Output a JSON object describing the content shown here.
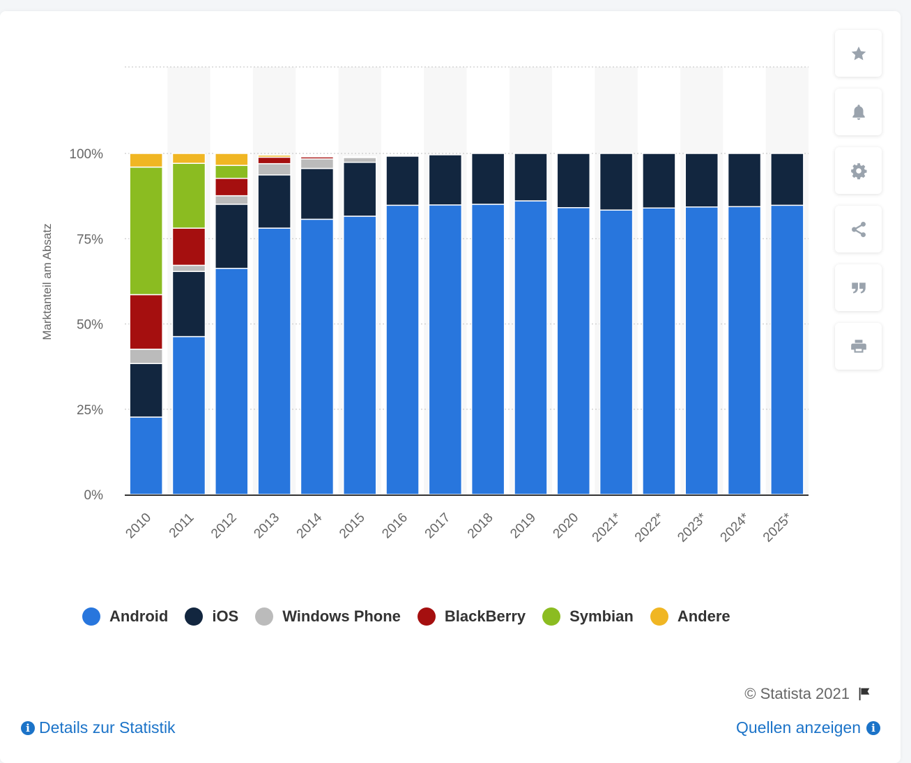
{
  "chart_data": {
    "type": "bar",
    "stacked": true,
    "categories": [
      "2010",
      "2011",
      "2012",
      "2013",
      "2014",
      "2015",
      "2016",
      "2017",
      "2018",
      "2019",
      "2020",
      "2021*",
      "2022*",
      "2023*",
      "2024*",
      "2025*"
    ],
    "series": [
      {
        "name": "Android",
        "color": "#2876dd",
        "values": [
          22.7,
          46.3,
          66.3,
          78.1,
          80.7,
          81.6,
          84.8,
          84.9,
          85.1,
          86.1,
          84.1,
          83.4,
          84.0,
          84.3,
          84.4,
          84.8
        ]
      },
      {
        "name": "iOS",
        "color": "#12263f",
        "values": [
          15.7,
          19.1,
          18.8,
          15.6,
          14.9,
          15.8,
          14.4,
          14.7,
          14.9,
          13.9,
          15.9,
          16.6,
          16.0,
          15.7,
          15.6,
          15.2
        ]
      },
      {
        "name": "Windows Phone",
        "color": "#bbbbbb",
        "values": [
          4.2,
          1.8,
          2.5,
          3.3,
          2.8,
          1.4,
          0,
          0,
          0,
          0,
          0,
          0,
          0,
          0,
          0,
          0
        ]
      },
      {
        "name": "BlackBerry",
        "color": "#a50f0f",
        "values": [
          16.0,
          10.9,
          5.1,
          1.9,
          0.6,
          0.2,
          0,
          0,
          0,
          0,
          0,
          0,
          0,
          0,
          0,
          0
        ]
      },
      {
        "name": "Symbian",
        "color": "#8bbc21",
        "values": [
          37.4,
          19.0,
          3.8,
          0,
          0,
          0,
          0,
          0,
          0,
          0,
          0,
          0,
          0,
          0,
          0,
          0
        ]
      },
      {
        "name": "Andere",
        "color": "#f0b623",
        "values": [
          4.0,
          2.9,
          3.5,
          0.6,
          0.3,
          0,
          0,
          0,
          0,
          0,
          0,
          0,
          0,
          0,
          0,
          0
        ]
      }
    ],
    "ylabel": "Marktanteil am Absatz",
    "ylim": [
      0,
      100
    ],
    "yticks": [
      "0%",
      "25%",
      "50%",
      "75%",
      "100%"
    ],
    "ytick_values": [
      0,
      25,
      50,
      75,
      100
    ],
    "grid": true,
    "legend_position": "bottom"
  },
  "sidebar": {
    "buttons": [
      {
        "icon": "star-icon",
        "name": "favorite-button"
      },
      {
        "icon": "bell-icon",
        "name": "notification-button"
      },
      {
        "icon": "gear-icon",
        "name": "settings-button"
      },
      {
        "icon": "share-icon",
        "name": "share-button"
      },
      {
        "icon": "quote-icon",
        "name": "cite-button"
      },
      {
        "icon": "print-icon",
        "name": "print-button"
      }
    ]
  },
  "footer": {
    "copyright": "© Statista 2021",
    "details_link": "Details zur Statistik",
    "sources_link": "Quellen anzeigen"
  }
}
